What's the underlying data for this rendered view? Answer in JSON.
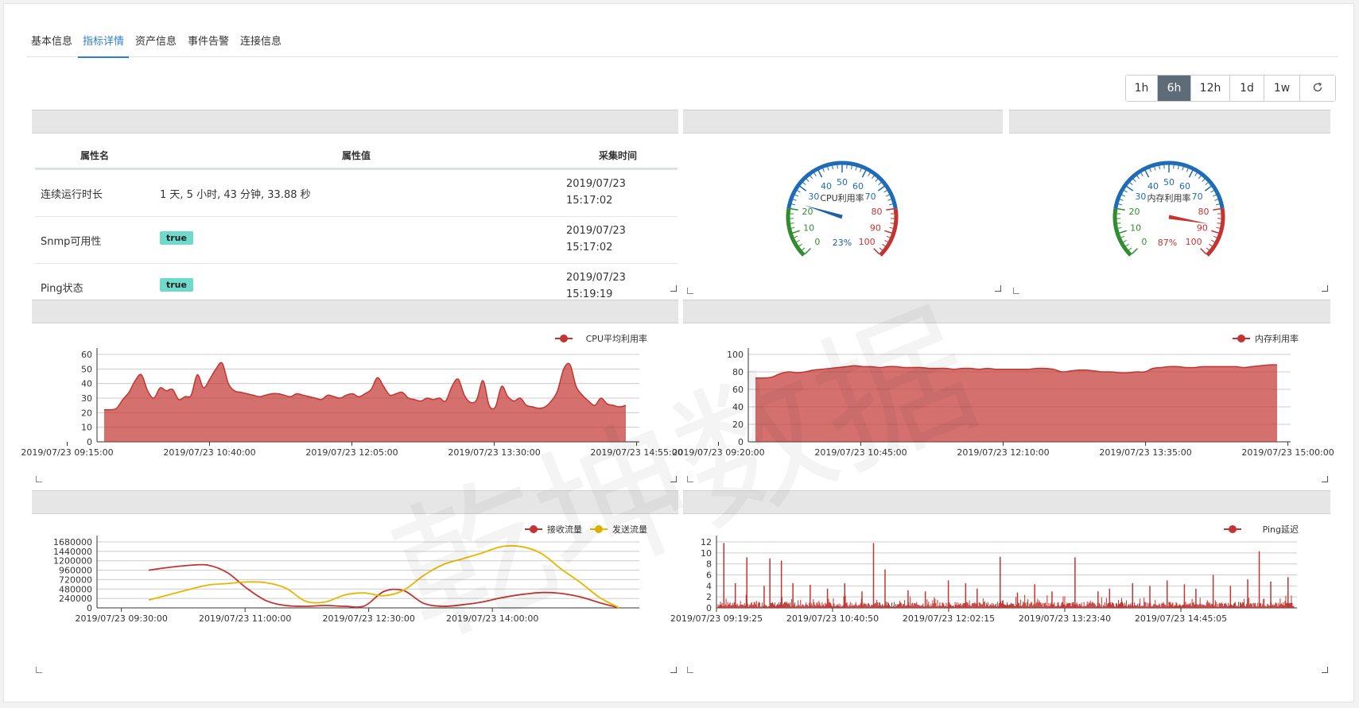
{
  "tabs": [
    "基本信息",
    "指标详情",
    "资产信息",
    "事件告警",
    "连接信息"
  ],
  "active_tab": 1,
  "range_buttons": [
    "1h",
    "6h",
    "12h",
    "1d",
    "1w"
  ],
  "active_range": 1,
  "refresh_icon": "refresh-icon",
  "table": {
    "headers": [
      "属性名",
      "属性值",
      "采集时间"
    ],
    "rows": [
      {
        "name": "连续运行时长",
        "value": "1 天, 5 小时, 43 分钟, 33.88 秒",
        "badge": false,
        "time1": "2019/07/23",
        "time2": "15:17:02"
      },
      {
        "name": "Snmp可用性",
        "value": "true",
        "badge": true,
        "time1": "2019/07/23",
        "time2": "15:17:02"
      },
      {
        "name": "Ping状态",
        "value": "true",
        "badge": true,
        "time1": "2019/07/23",
        "time2": "15:19:19"
      }
    ]
  },
  "gauges": [
    {
      "title": "CPU利用率",
      "value": 23,
      "value_label": "23%",
      "needle_color": "#1f5fa6"
    },
    {
      "title": "内存利用率",
      "value": 87,
      "value_label": "87%",
      "needle_color": "#c23531"
    }
  ],
  "watermark": "乾坤数据",
  "chart_data": [
    {
      "type": "area",
      "legend": [
        "CPU平均利用率"
      ],
      "x_ticks": [
        "2019/07/23 09:15:00",
        "2019/07/23 10:40:00",
        "2019/07/23 12:05:00",
        "2019/07/23 13:30:00",
        "2019/07/23 14:55:00"
      ],
      "ylim": [
        0,
        60
      ],
      "y_ticks": [
        0,
        10,
        20,
        30,
        40,
        50,
        60
      ],
      "color": "#c23531",
      "series": [
        {
          "name": "CPU平均利用率",
          "values": [
            22,
            22,
            23,
            29,
            34,
            42,
            46,
            35,
            30,
            37,
            35,
            36,
            29,
            31,
            32,
            46,
            37,
            43,
            50,
            54,
            40,
            35,
            34,
            33,
            32,
            31,
            32,
            33,
            33,
            32,
            31,
            33,
            32,
            31,
            30,
            29,
            32,
            31,
            30,
            32,
            33,
            31,
            33,
            36,
            44,
            38,
            32,
            33,
            34,
            30,
            29,
            28,
            30,
            29,
            30,
            28,
            38,
            43,
            32,
            27,
            29,
            42,
            25,
            24,
            38,
            31,
            28,
            30,
            25,
            24,
            23,
            24,
            28,
            35,
            50,
            53,
            38,
            32,
            28,
            25,
            30,
            26,
            25,
            24,
            25
          ]
        }
      ]
    },
    {
      "type": "area",
      "legend": [
        "内存利用率"
      ],
      "x_ticks": [
        "2019/07/23 09:20:00",
        "2019/07/23 10:45:00",
        "2019/07/23 12:10:00",
        "2019/07/23 13:35:00",
        "2019/07/23 15:00:00"
      ],
      "ylim": [
        0,
        100
      ],
      "y_ticks": [
        0,
        20,
        40,
        60,
        80,
        100
      ],
      "color": "#c23531",
      "series": [
        {
          "name": "内存利用率",
          "values": [
            73,
            73,
            74,
            78,
            80,
            79,
            80,
            82,
            83,
            84,
            85,
            86,
            87,
            86,
            86,
            85,
            86,
            86,
            85,
            85,
            85,
            84,
            84,
            84,
            83,
            84,
            84,
            83,
            84,
            83,
            83,
            83,
            83,
            83,
            84,
            84,
            83,
            80,
            81,
            82,
            82,
            81,
            80,
            80,
            79,
            79,
            80,
            80,
            84,
            85,
            86,
            86,
            85,
            85,
            86,
            86,
            86,
            86,
            86,
            85,
            86,
            87,
            88,
            88
          ]
        }
      ]
    },
    {
      "type": "line",
      "legend": [
        "接收流量",
        "发送流量"
      ],
      "x_ticks": [
        "2019/07/23 09:30:00",
        "2019/07/23 11:00:00",
        "2019/07/23 12:30:00",
        "2019/07/23 14:00:00"
      ],
      "ylim": [
        0,
        1680000
      ],
      "y_ticks": [
        0,
        240000,
        480000,
        720000,
        960000,
        1200000,
        1440000,
        1680000
      ],
      "series": [
        {
          "name": "接收流量",
          "color": "#c23531",
          "values": [
            960000,
            1030000,
            1080000,
            1090000,
            900000,
            500000,
            180000,
            60000,
            40000,
            60000,
            40000,
            50000,
            420000,
            440000,
            120000,
            40000,
            80000,
            150000,
            260000,
            340000,
            390000,
            370000,
            280000,
            130000,
            0
          ]
        },
        {
          "name": "发送流量",
          "color": "#e6b600",
          "values": [
            200000,
            330000,
            460000,
            580000,
            620000,
            660000,
            640000,
            500000,
            170000,
            150000,
            330000,
            380000,
            310000,
            450000,
            820000,
            1100000,
            1250000,
            1400000,
            1560000,
            1560000,
            1390000,
            1000000,
            650000,
            260000,
            0
          ]
        }
      ]
    },
    {
      "type": "bar",
      "legend": [
        "Ping延迟"
      ],
      "x_ticks": [
        "2019/07/23 09:19:25",
        "2019/07/23 10:40:50",
        "2019/07/23 12:02:15",
        "2019/07/23 13:23:40",
        "2019/07/23 14:45:05"
      ],
      "ylim": [
        0,
        12
      ],
      "y_ticks": [
        0,
        2,
        4,
        6,
        8,
        10,
        12
      ],
      "color": "#c23531",
      "spikes": [
        [
          0.01,
          11.8
        ],
        [
          0.03,
          4.5
        ],
        [
          0.05,
          9.2
        ],
        [
          0.08,
          4.0
        ],
        [
          0.09,
          9.0
        ],
        [
          0.11,
          8.6
        ],
        [
          0.13,
          4.5
        ],
        [
          0.16,
          4.2
        ],
        [
          0.19,
          3.5
        ],
        [
          0.22,
          4.5
        ],
        [
          0.25,
          3.0
        ],
        [
          0.27,
          11.8
        ],
        [
          0.29,
          7.0
        ],
        [
          0.33,
          3.2
        ],
        [
          0.36,
          3.0
        ],
        [
          0.4,
          5.0
        ],
        [
          0.43,
          4.5
        ],
        [
          0.45,
          3.5
        ],
        [
          0.49,
          9.3
        ],
        [
          0.52,
          2.8
        ],
        [
          0.55,
          4.3
        ],
        [
          0.58,
          3.0
        ],
        [
          0.62,
          9.2
        ],
        [
          0.66,
          3.0
        ],
        [
          0.68,
          3.5
        ],
        [
          0.72,
          4.5
        ],
        [
          0.75,
          4.0
        ],
        [
          0.78,
          5.0
        ],
        [
          0.81,
          4.3
        ],
        [
          0.83,
          3.5
        ],
        [
          0.86,
          6.0
        ],
        [
          0.89,
          4.0
        ],
        [
          0.92,
          5.2
        ],
        [
          0.94,
          10.3
        ],
        [
          0.96,
          4.8
        ],
        [
          0.99,
          5.6
        ]
      ]
    }
  ]
}
